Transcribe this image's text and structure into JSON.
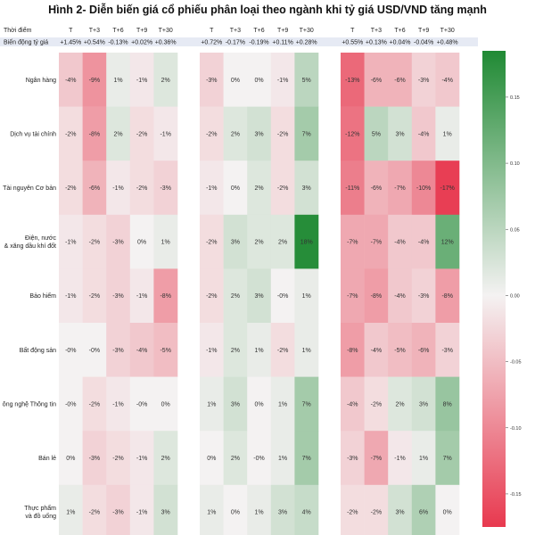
{
  "title": "Hình 2- Diễn biến giá cổ phiếu phân loại theo ngành khi tỷ giá USD/VND tăng mạnh",
  "labels": {
    "time_label": "Thời điểm",
    "fx_label": "Biến động tỷ giá"
  },
  "chart_data": {
    "type": "heatmap",
    "periods": [
      "T",
      "T+3",
      "T+6",
      "T+9",
      "T+30"
    ],
    "groups": [
      {
        "fx_changes": [
          "+1.45%",
          "+0.54%",
          "-0.13%",
          "+0.02%",
          "+0.36%"
        ],
        "values": [
          [
            -4,
            -9,
            1,
            -1,
            2
          ],
          [
            -2,
            -8,
            2,
            -2,
            -1
          ],
          [
            -2,
            -6,
            -1,
            -2,
            -3
          ],
          [
            -1,
            -2,
            -3,
            0,
            1
          ],
          [
            -1,
            -2,
            -3,
            -1,
            -8
          ],
          [
            0,
            0,
            -3,
            -4,
            -5
          ],
          [
            0,
            -2,
            -1,
            0,
            0
          ],
          [
            0,
            -3,
            -2,
            -1,
            2
          ],
          [
            1,
            -2,
            -3,
            -1,
            3
          ]
        ]
      },
      {
        "fx_changes": [
          "+0.72%",
          "-0.17%",
          "-0.19%",
          "+0.11%",
          "+0.28%"
        ],
        "values": [
          [
            -3,
            0,
            0,
            -1,
            5
          ],
          [
            -2,
            2,
            3,
            -2,
            7
          ],
          [
            -1,
            0,
            2,
            -2,
            3
          ],
          [
            -2,
            3,
            2,
            2,
            18
          ],
          [
            -2,
            2,
            3,
            0,
            1
          ],
          [
            -1,
            2,
            1,
            -2,
            1
          ],
          [
            1,
            3,
            0,
            1,
            7
          ],
          [
            0,
            2,
            0,
            1,
            7
          ],
          [
            1,
            0,
            1,
            3,
            4
          ]
        ]
      },
      {
        "fx_changes": [
          "+0.55%",
          "+0.13%",
          "+0.04%",
          "-0.04%",
          "+0.48%"
        ],
        "values": [
          [
            -13,
            -6,
            -6,
            -3,
            -4
          ],
          [
            -12,
            5,
            3,
            -4,
            1
          ],
          [
            -11,
            -6,
            -7,
            -10,
            -17
          ],
          [
            -7,
            -7,
            -4,
            -4,
            12
          ],
          [
            -7,
            -8,
            -4,
            -3,
            -8
          ],
          [
            -8,
            -4,
            -5,
            -6,
            -3
          ],
          [
            -4,
            -2,
            2,
            3,
            8
          ],
          [
            -3,
            -7,
            -1,
            1,
            7
          ],
          [
            -2,
            -2,
            3,
            6,
            0
          ]
        ]
      }
    ],
    "sectors": [
      "Ngân hàng",
      "Dịch vụ tài chính",
      "Tài nguyên Cơ bản",
      "Điện, nước",
      "Bảo hiểm",
      "Bất động sản",
      "ông nghệ Thông tin",
      "Bán lẻ",
      "Thực phẩm"
    ],
    "sector_sublines": [
      "",
      "",
      "",
      "& xăng dầu khí đốt",
      "",
      "",
      "",
      "",
      "và đồ uống"
    ],
    "value_unit": "%",
    "colorbar": {
      "min": -0.175,
      "max": 0.185,
      "ticks": [
        "0.15",
        "0.10",
        "0.05",
        "0.00",
        "-0.05",
        "-0.10",
        "-0.15"
      ],
      "low_color": "#e8394f",
      "mid_color": "#f4f2f2",
      "high_color": "#208a34"
    }
  }
}
